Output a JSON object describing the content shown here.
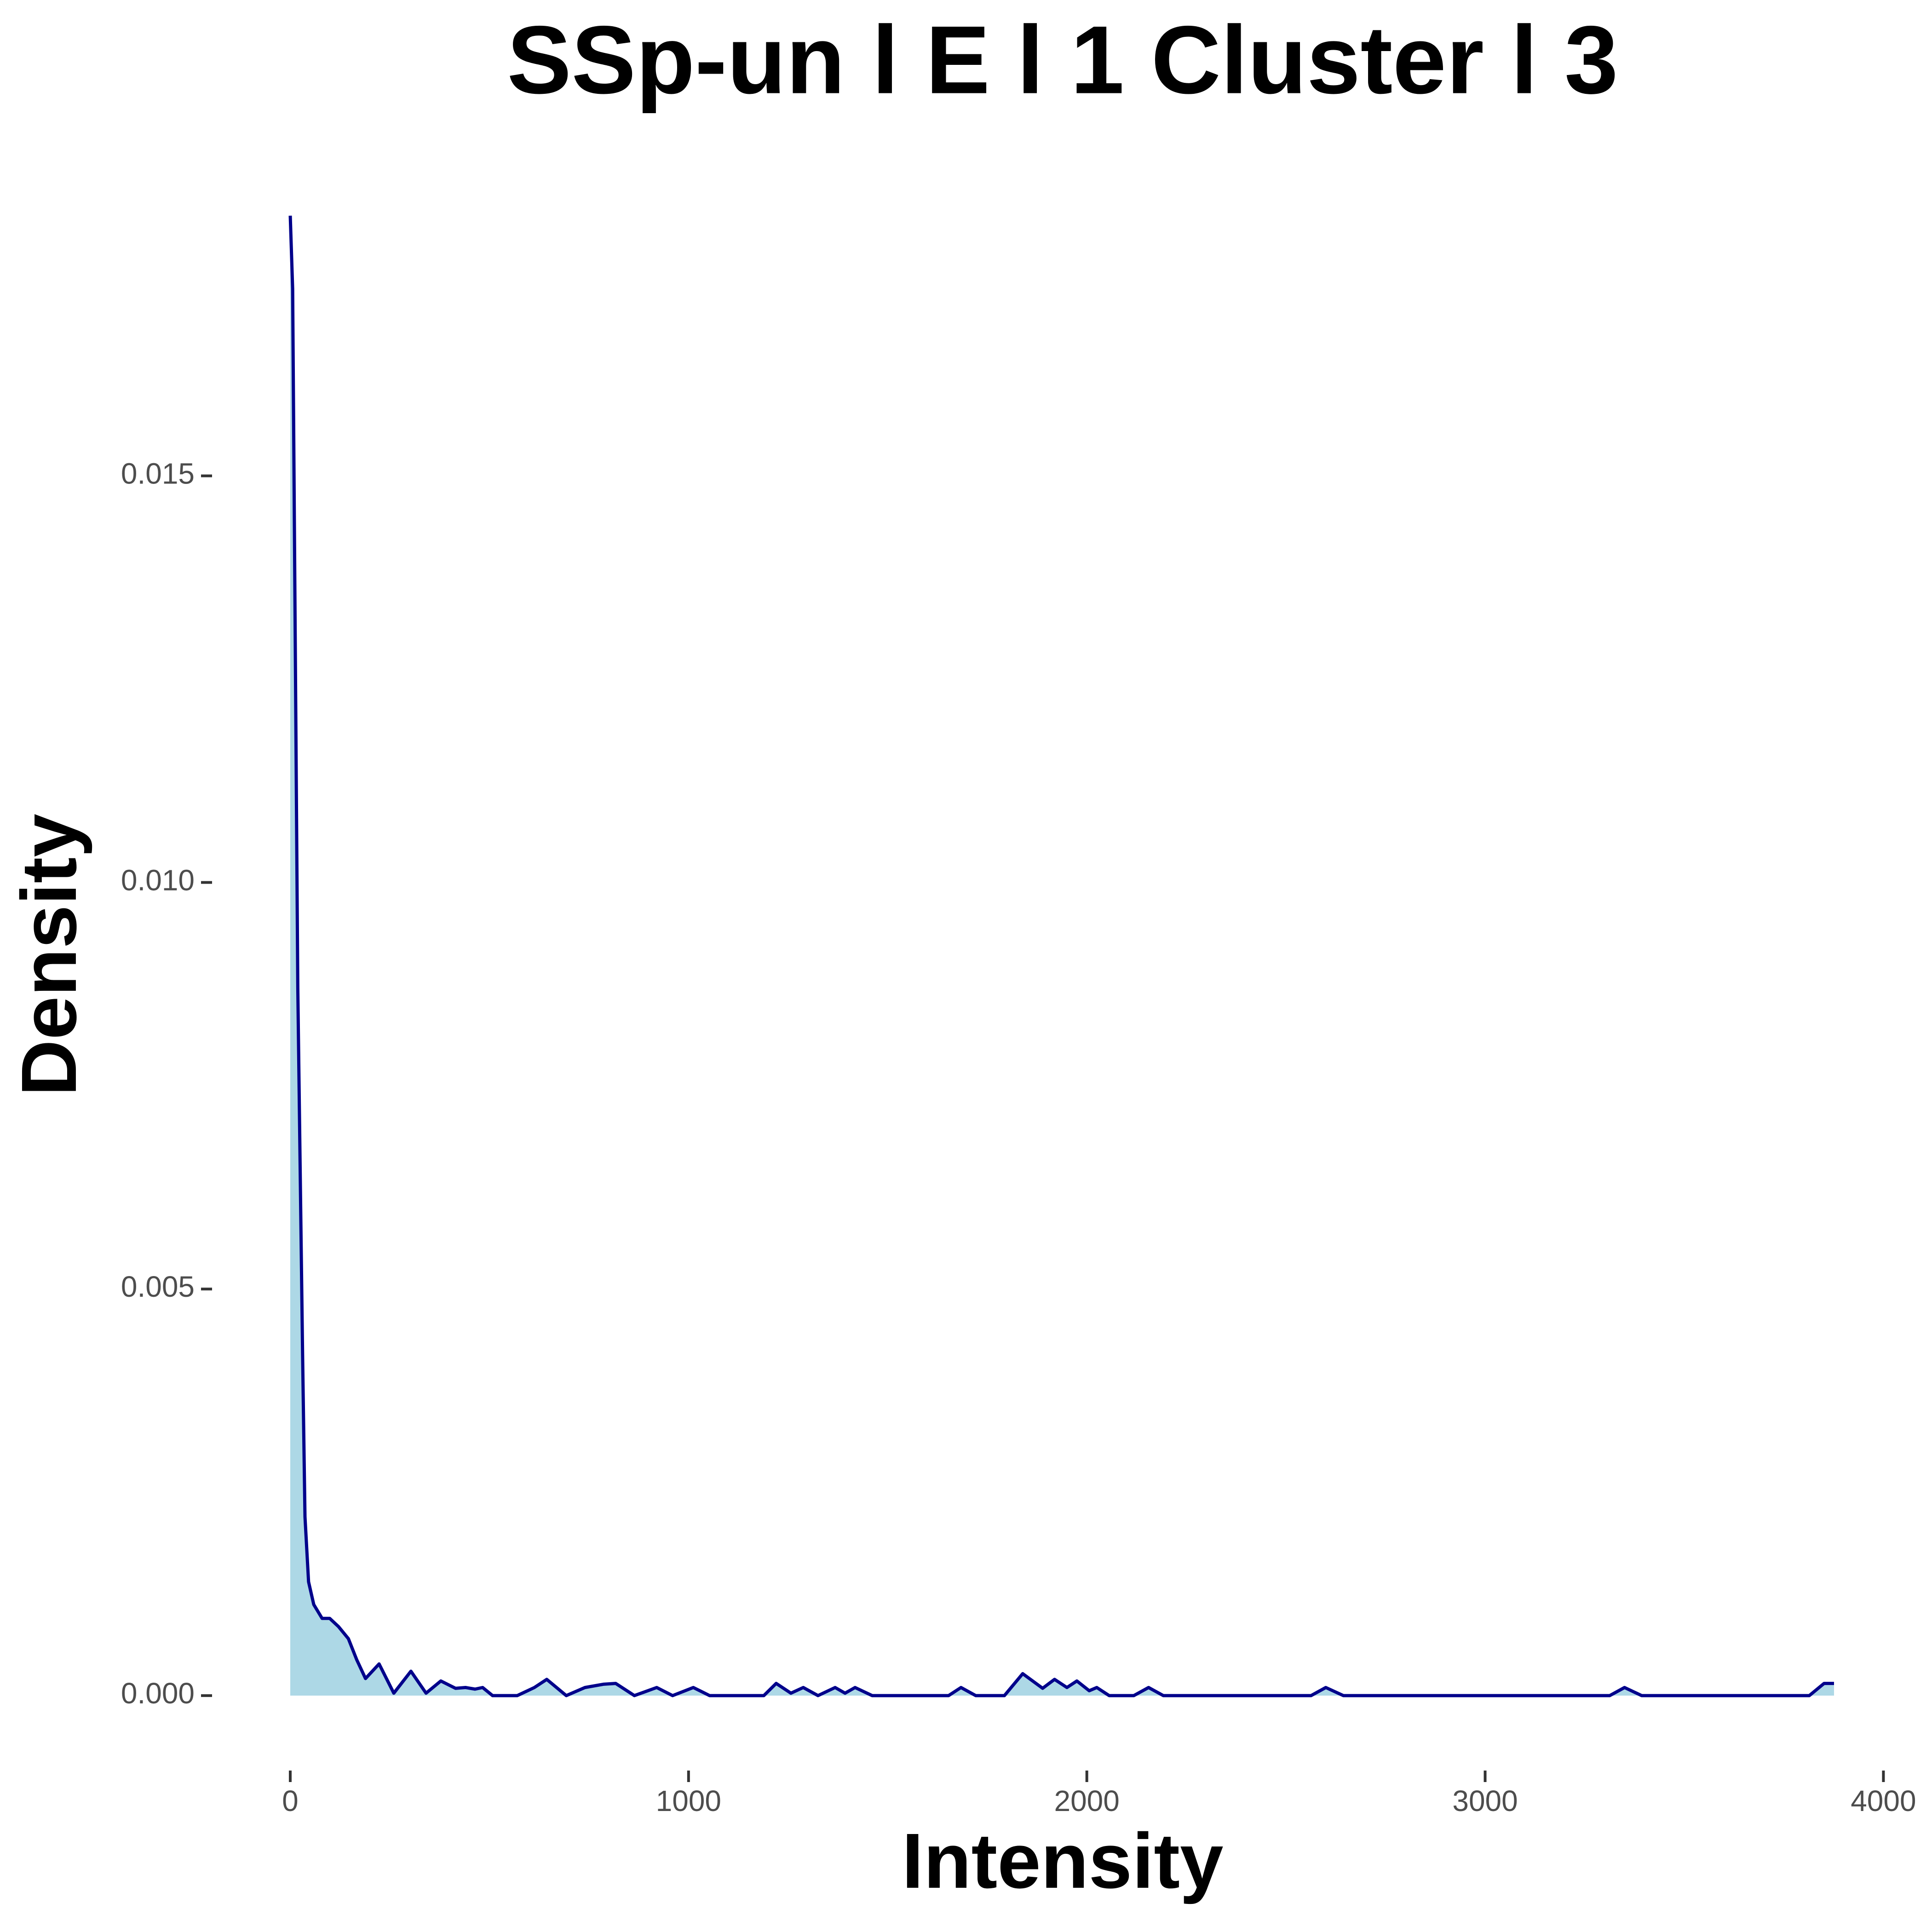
{
  "chart_data": {
    "type": "area",
    "title": "SSp-un l E l 1 Cluster l  3",
    "x_label": "Intensity",
    "y_label": "Density",
    "x": [
      0,
      6,
      19,
      31,
      37,
      46,
      59,
      80,
      99,
      121,
      146,
      167,
      189,
      223,
      260,
      303,
      341,
      378,
      415,
      440,
      464,
      483,
      508,
      570,
      613,
      644,
      693,
      740,
      786,
      817,
      864,
      920,
      960,
      1012,
      1053,
      1189,
      1220,
      1257,
      1288,
      1325,
      1368,
      1393,
      1418,
      1461,
      1653,
      1684,
      1721,
      1793,
      1839,
      1889,
      1919,
      1950,
      1975,
      2006,
      2025,
      2056,
      2118,
      2155,
      2192,
      2563,
      2600,
      2644,
      3313,
      3350,
      3393,
      3814,
      3851,
      3876
    ],
    "series": [
      {
        "name": "density",
        "color": "#00008b",
        "fill": "#add8e6",
        "values": [
          0.0182,
          0.0173,
          0.0087,
          0.0042,
          0.0022,
          0.0014,
          0.00112,
          0.00095,
          0.00095,
          0.00085,
          0.0007,
          0.00044,
          0.00021,
          0.00039,
          3e-05,
          0.0003,
          3e-05,
          0.00018,
          9e-05,
          0.0001,
          8e-05,
          0.0001,
          0,
          0,
          0.0001,
          0.0002,
          0,
          0.0001,
          0.00014,
          0.00015,
          0,
          0.0001,
          0,
          0.0001,
          0,
          0,
          0.00015,
          3e-05,
          0.0001,
          0,
          0.0001,
          3e-05,
          0.0001,
          0,
          0,
          0.0001,
          0,
          0,
          0.00027,
          9e-05,
          0.0002,
          0.0001,
          0.00018,
          6e-05,
          0.0001,
          0,
          0,
          0.0001,
          0,
          0,
          0.0001,
          0,
          0,
          0.0001,
          0,
          0,
          0.00015,
          0.00015
        ]
      }
    ],
    "xlim": [
      -194,
      4070
    ],
    "ylim": [
      -0.00091,
      0.01911
    ],
    "xticks": [
      0,
      1000,
      2000,
      3000,
      4000
    ],
    "yticks": [
      {
        "value": 0,
        "label": "0.000"
      },
      {
        "value": 0.005,
        "label": "0.005"
      },
      {
        "value": 0.01,
        "label": "0.010"
      },
      {
        "value": 0.015,
        "label": "0.015"
      }
    ],
    "grid": false
  }
}
